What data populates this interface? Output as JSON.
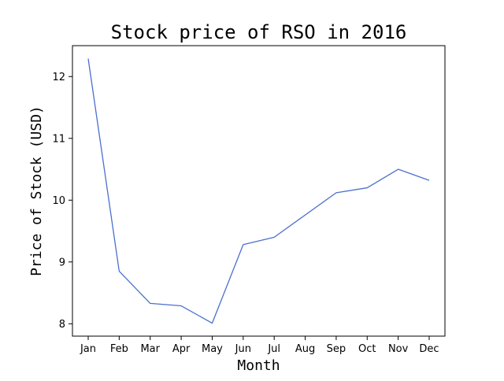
{
  "chart_data": {
    "type": "line",
    "title": "Stock price of RSO in 2016",
    "xlabel": "Month",
    "ylabel": "Price of Stock (USD)",
    "categories": [
      "Jan",
      "Feb",
      "Mar",
      "Apr",
      "May",
      "Jun",
      "Jul",
      "Aug",
      "Sep",
      "Oct",
      "Nov",
      "Dec"
    ],
    "series": [
      {
        "values": [
          12.29,
          8.85,
          8.33,
          8.29,
          8.01,
          9.28,
          9.4,
          9.76,
          10.12,
          10.2,
          10.5,
          10.32
        ],
        "color": "#4a6fce"
      }
    ],
    "ylim": [
      7.8,
      12.5
    ],
    "yticks": [
      8,
      9,
      10,
      11,
      12
    ],
    "ytick_labels": [
      "8",
      "9",
      "10",
      "11",
      "12"
    ],
    "grid": false,
    "legend": "none"
  }
}
